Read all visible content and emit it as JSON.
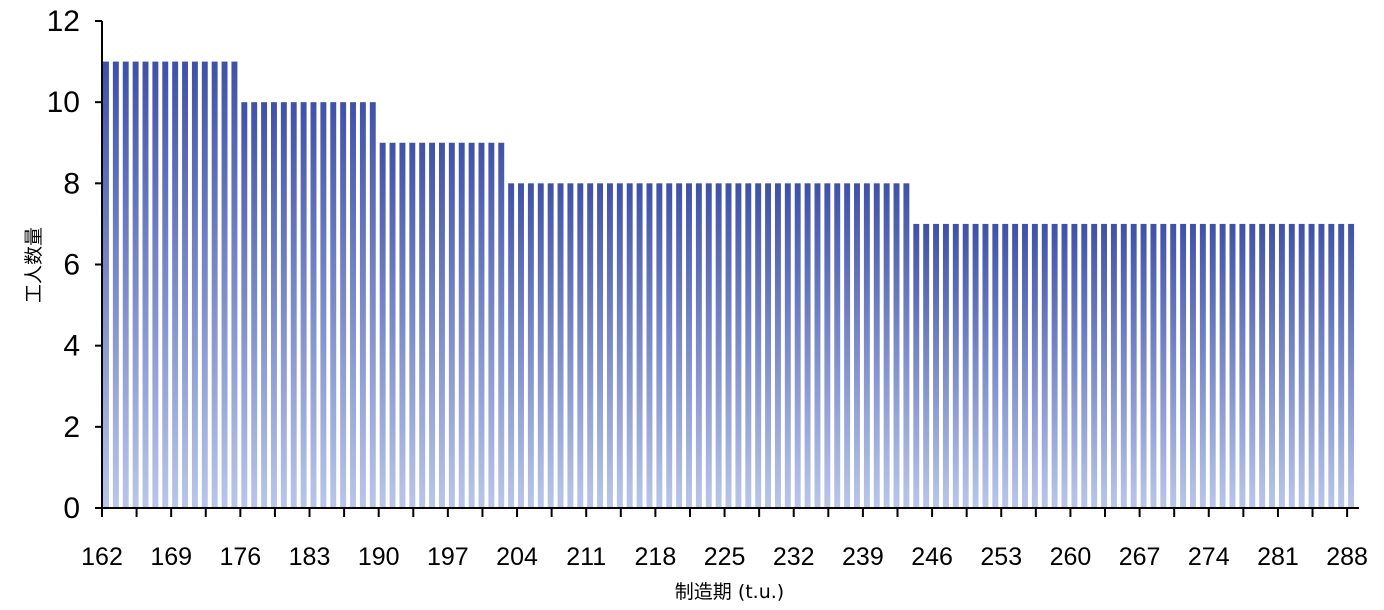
{
  "chart_data": {
    "type": "bar",
    "xlabel": "制造期 (t.u.)",
    "ylabel": "工人数量",
    "ylim": [
      0,
      12
    ],
    "xlim": [
      162,
      289
    ],
    "y_ticks": [
      0,
      2,
      4,
      6,
      8,
      10,
      12
    ],
    "x_ticks": [
      162,
      169,
      176,
      183,
      190,
      197,
      204,
      211,
      218,
      225,
      232,
      239,
      246,
      253,
      260,
      267,
      274,
      281,
      288
    ],
    "series": [
      {
        "steps": [
          {
            "x_start": 162,
            "x_end": 175,
            "value": 11
          },
          {
            "x_start": 176,
            "x_end": 189,
            "value": 10
          },
          {
            "x_start": 190,
            "x_end": 202,
            "value": 9
          },
          {
            "x_start": 203,
            "x_end": 243,
            "value": 8
          },
          {
            "x_start": 244,
            "x_end": 288,
            "value": 7
          }
        ]
      }
    ],
    "grid": false,
    "legend": "none",
    "gradient_top_color": "#3f51a8",
    "gradient_bottom_color": "#b9c6ea"
  }
}
